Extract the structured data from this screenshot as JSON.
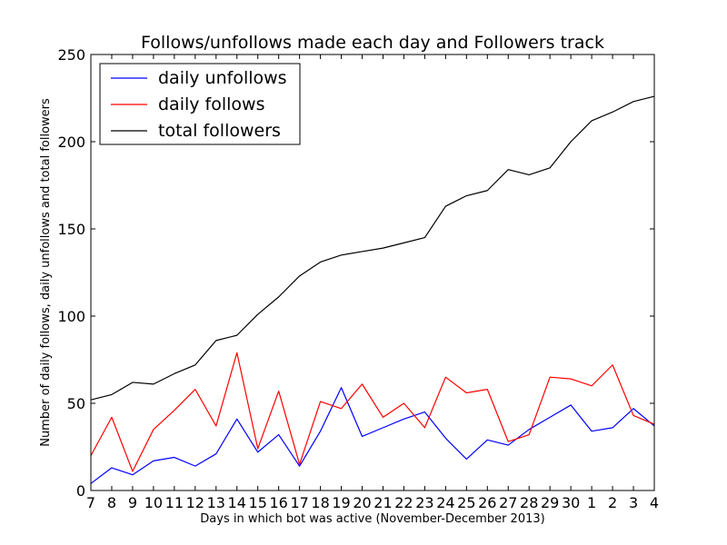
{
  "chart_data": {
    "type": "line",
    "title": "Follows/unfollows made each day and Followers track",
    "xlabel": "Days in which bot was active (November-December 2013)",
    "ylabel": "Number of daily follows, daily unfollows and total followers",
    "x": [
      "7",
      "8",
      "9",
      "10",
      "11",
      "12",
      "13",
      "14",
      "15",
      "16",
      "17",
      "18",
      "19",
      "20",
      "21",
      "22",
      "23",
      "24",
      "25",
      "26",
      "27",
      "28",
      "29",
      "30",
      "1",
      "2",
      "3",
      "4"
    ],
    "ylim": [
      0,
      250
    ],
    "yticks": [
      0,
      50,
      100,
      150,
      200,
      250
    ],
    "grid": false,
    "legend_position": "upper-left",
    "series": [
      {
        "name": "daily unfollows",
        "color": "#0000ff",
        "values": [
          4,
          13,
          9,
          17,
          19,
          14,
          21,
          41,
          22,
          32,
          14,
          34,
          59,
          31,
          36,
          41,
          45,
          30,
          18,
          29,
          26,
          35,
          42,
          49,
          34,
          36,
          47,
          37
        ]
      },
      {
        "name": "daily follows",
        "color": "#ff0000",
        "values": [
          20,
          42,
          11,
          35,
          46,
          58,
          37,
          79,
          24,
          57,
          15,
          51,
          47,
          61,
          42,
          50,
          36,
          65,
          56,
          58,
          28,
          32,
          65,
          64,
          60,
          72,
          43,
          38
        ]
      },
      {
        "name": "total followers",
        "color": "#000000",
        "values": [
          52,
          55,
          62,
          61,
          67,
          72,
          86,
          89,
          101,
          111,
          123,
          131,
          135,
          137,
          139,
          142,
          145,
          163,
          169,
          172,
          184,
          181,
          185,
          200,
          212,
          217,
          223,
          226
        ]
      }
    ]
  }
}
